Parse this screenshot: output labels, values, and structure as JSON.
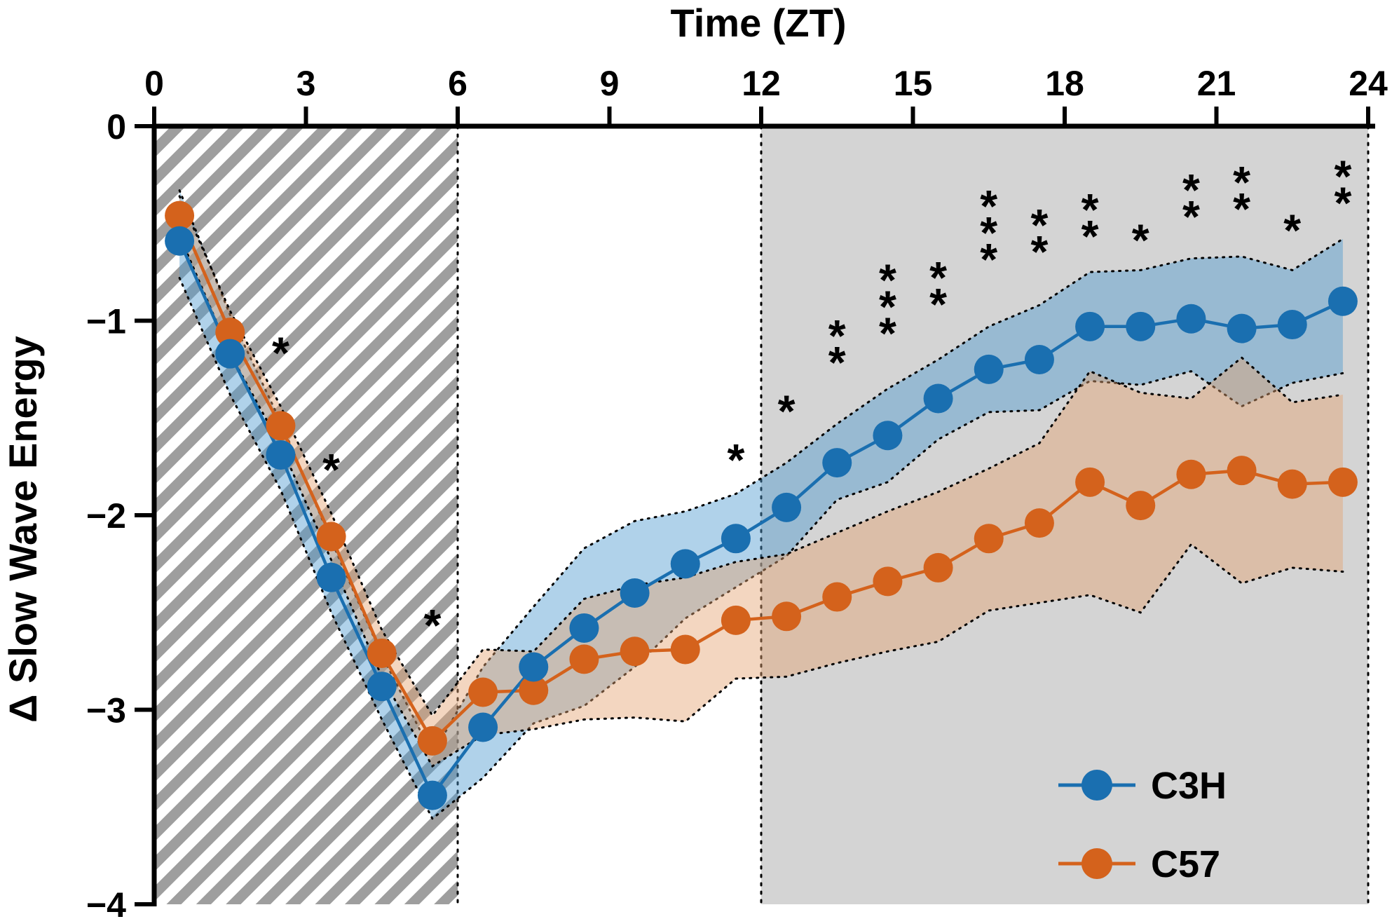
{
  "chart_data": {
    "type": "line",
    "title": "",
    "xlabel": "Time (ZT)",
    "ylabel": "Δ Slow Wave Energy",
    "xlim": [
      0,
      24
    ],
    "ylim": [
      -4,
      0
    ],
    "x_ticks": [
      0,
      3,
      6,
      9,
      12,
      15,
      18,
      21,
      24
    ],
    "y_ticks": [
      {
        "value": 0,
        "label": "0"
      },
      {
        "value": -1,
        "label": "−1"
      },
      {
        "value": -2,
        "label": "−2"
      },
      {
        "value": -3,
        "label": "−3"
      },
      {
        "value": -4,
        "label": "−4"
      }
    ],
    "x_axis_position": "top",
    "legend_position": "bottom-right",
    "grid": false,
    "shaded_regions": [
      {
        "x_start": 0,
        "x_end": 6,
        "style": "hatched",
        "meaning_shown": "none"
      },
      {
        "x_start": 12,
        "x_end": 24,
        "style": "gray-fill",
        "meaning_shown": "none"
      }
    ],
    "x": [
      0.5,
      1.5,
      2.5,
      3.5,
      4.5,
      5.5,
      6.5,
      7.5,
      8.5,
      9.5,
      10.5,
      11.5,
      12.5,
      13.5,
      14.5,
      15.5,
      16.5,
      17.5,
      18.5,
      19.5,
      20.5,
      21.5,
      22.5,
      23.5
    ],
    "series": [
      {
        "name": "C3H",
        "color": "#1a6fb0",
        "band_color": "#4f9bd0",
        "values": [
          -0.59,
          -1.17,
          -1.69,
          -2.32,
          -2.88,
          -3.44,
          -3.09,
          -2.78,
          -2.58,
          -2.4,
          -2.25,
          -2.12,
          -1.96,
          -1.73,
          -1.59,
          -1.4,
          -1.25,
          -1.2,
          -1.03,
          -1.03,
          -0.99,
          -1.04,
          -1.02,
          -0.9
        ],
        "upper": [
          -0.33,
          -0.97,
          -1.52,
          -2.13,
          -2.72,
          -3.23,
          -2.78,
          -2.47,
          -2.17,
          -2.03,
          -1.98,
          -1.89,
          -1.73,
          -1.53,
          -1.35,
          -1.2,
          -1.03,
          -0.92,
          -0.75,
          -0.74,
          -0.68,
          -0.67,
          -0.74,
          -0.58
        ],
        "lower": [
          -0.78,
          -1.38,
          -1.87,
          -2.5,
          -3.05,
          -3.56,
          -3.35,
          -3.07,
          -2.98,
          -2.78,
          -2.53,
          -2.37,
          -2.21,
          -1.92,
          -1.83,
          -1.61,
          -1.47,
          -1.46,
          -1.31,
          -1.33,
          -1.26,
          -1.44,
          -1.32,
          -1.27
        ]
      },
      {
        "name": "C57",
        "color": "#d4621c",
        "band_color": "#e4a373",
        "values": [
          -0.46,
          -1.06,
          -1.54,
          -2.11,
          -2.71,
          -3.16,
          -2.91,
          -2.9,
          -2.74,
          -2.7,
          -2.69,
          -2.54,
          -2.52,
          -2.42,
          -2.34,
          -2.27,
          -2.12,
          -2.04,
          -1.83,
          -1.95,
          -1.79,
          -1.77,
          -1.84,
          -1.83
        ],
        "upper": [
          -0.36,
          -0.95,
          -1.44,
          -1.99,
          -2.59,
          -3.03,
          -2.69,
          -2.7,
          -2.43,
          -2.36,
          -2.32,
          -2.24,
          -2.2,
          -2.09,
          -1.98,
          -1.88,
          -1.76,
          -1.63,
          -1.26,
          -1.37,
          -1.4,
          -1.19,
          -1.42,
          -1.38
        ],
        "lower": [
          -0.56,
          -1.17,
          -1.64,
          -2.23,
          -2.83,
          -3.29,
          -3.13,
          -3.1,
          -3.05,
          -3.04,
          -3.06,
          -2.84,
          -2.83,
          -2.76,
          -2.7,
          -2.65,
          -2.49,
          -2.45,
          -2.41,
          -2.5,
          -2.15,
          -2.35,
          -2.27,
          -2.29
        ]
      }
    ],
    "significance": [
      {
        "x": 2.5,
        "y": -1.1,
        "marks": "*"
      },
      {
        "x": 3.5,
        "y": -1.7,
        "marks": "*"
      },
      {
        "x": 5.5,
        "y": -2.5,
        "marks": "*"
      },
      {
        "x": 11.5,
        "y": -1.65,
        "marks": "*"
      },
      {
        "x": 12.5,
        "y": -1.4,
        "marks": "*"
      },
      {
        "x": 13.5,
        "y": -1.15,
        "marks": "**"
      },
      {
        "x": 14.5,
        "y": -1.0,
        "marks": "***"
      },
      {
        "x": 15.5,
        "y": -0.85,
        "marks": "**"
      },
      {
        "x": 16.5,
        "y": -0.62,
        "marks": "***"
      },
      {
        "x": 17.5,
        "y": -0.58,
        "marks": "**"
      },
      {
        "x": 18.5,
        "y": -0.5,
        "marks": "**"
      },
      {
        "x": 19.5,
        "y": -0.52,
        "marks": "*"
      },
      {
        "x": 20.5,
        "y": -0.4,
        "marks": "**"
      },
      {
        "x": 21.5,
        "y": -0.36,
        "marks": "**"
      },
      {
        "x": 22.5,
        "y": -0.47,
        "marks": "*"
      },
      {
        "x": 23.5,
        "y": -0.33,
        "marks": "**"
      }
    ]
  }
}
